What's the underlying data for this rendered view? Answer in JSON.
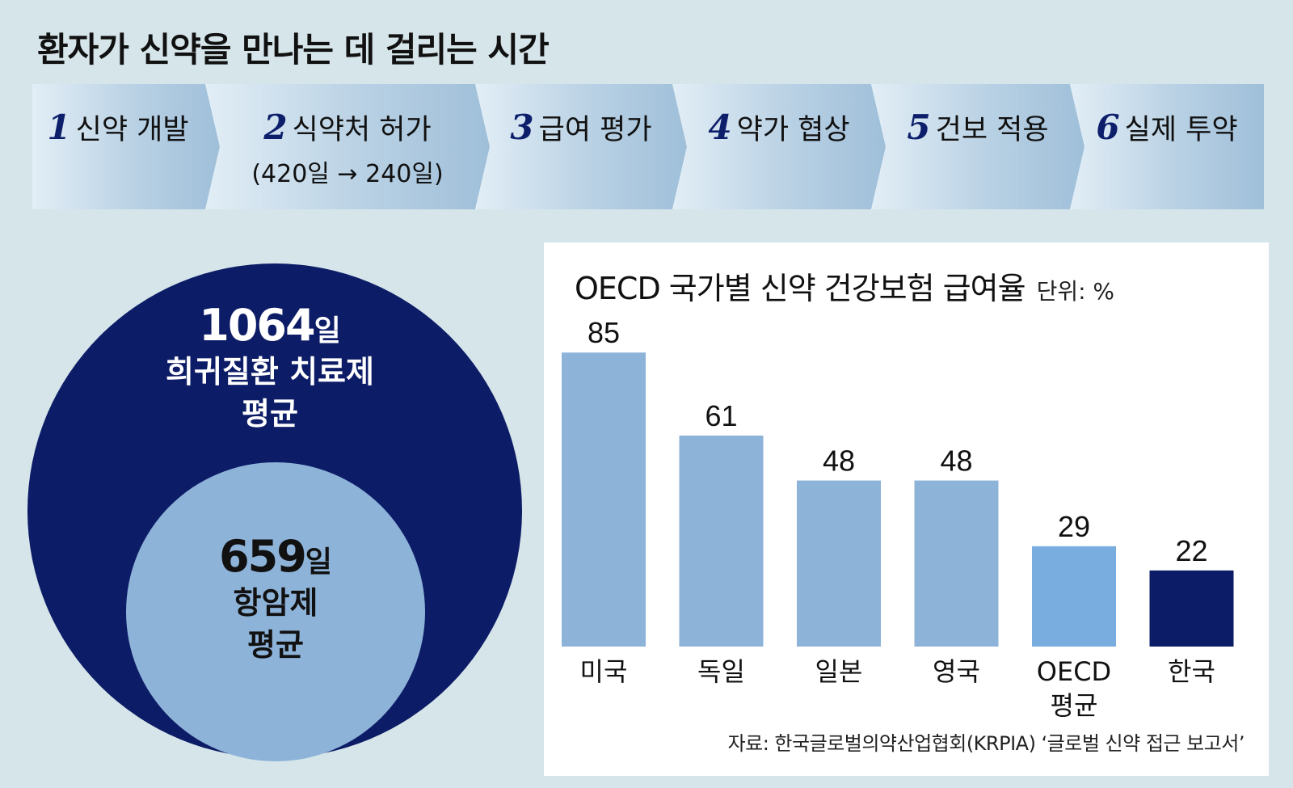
{
  "title": "환자가 신약을 만나는 데 걸리는 시간",
  "steps": [
    {
      "num": "1",
      "label": "신약 개발",
      "sub": ""
    },
    {
      "num": "2",
      "label": "식약처 허가",
      "sub": "(420일 → 240일)"
    },
    {
      "num": "3",
      "label": "급여 평가",
      "sub": ""
    },
    {
      "num": "4",
      "label": "약가 협상",
      "sub": ""
    },
    {
      "num": "5",
      "label": "건보 적용",
      "sub": ""
    },
    {
      "num": "6",
      "label": "실제 투약",
      "sub": ""
    }
  ],
  "circles": {
    "outer": {
      "value": "1064",
      "unit": "일",
      "line1": "희귀질환 치료제",
      "line2": "평균"
    },
    "inner": {
      "value": "659",
      "unit": "일",
      "line1": "항암제",
      "line2": "평균"
    }
  },
  "colors": {
    "background": "#d6e5ea",
    "navy": "#0c1c66",
    "bar": "#8eb3d9",
    "bar_oecd": "#7aaddf",
    "bar_korea": "#0c1c66"
  },
  "chart_data": {
    "type": "bar",
    "title": "OECD 국가별 신약 건강보험 급여율",
    "unit_label": "단위: %",
    "categories": [
      "미국",
      "독일",
      "일본",
      "영국",
      "OECD\n평균",
      "한국"
    ],
    "values": [
      85,
      61,
      48,
      48,
      29,
      22
    ],
    "ylim": [
      0,
      100
    ],
    "grid": false,
    "legend": "none"
  },
  "source": "자료: 한국글로벌의약산업협회(KRPIA) ‘글로벌 신약 접근 보고서’"
}
